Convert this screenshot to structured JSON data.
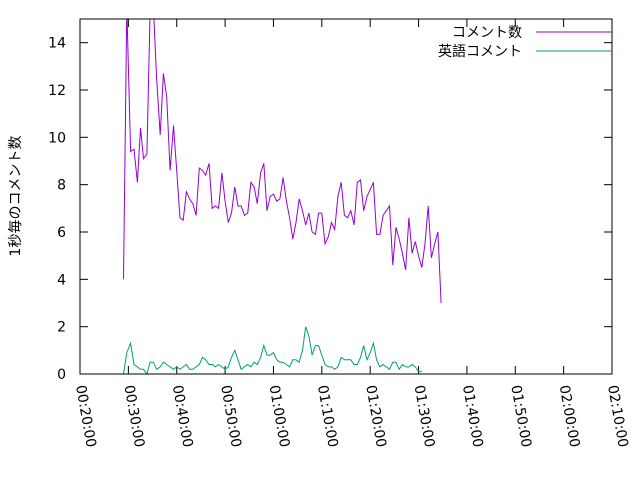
{
  "chart_data": {
    "type": "line",
    "ylabel": "1秒毎のコメント数",
    "xlabel": "",
    "ylim": [
      0,
      15
    ],
    "xlim": [
      1200,
      7800
    ],
    "yticks": [
      0,
      2,
      4,
      6,
      8,
      10,
      12,
      14
    ],
    "xticks": [
      {
        "t": 1200,
        "label": "00:20:00"
      },
      {
        "t": 1800,
        "label": "00:30:00"
      },
      {
        "t": 2400,
        "label": "00:40:00"
      },
      {
        "t": 3000,
        "label": "00:50:00"
      },
      {
        "t": 3600,
        "label": "01:00:00"
      },
      {
        "t": 4200,
        "label": "01:10:00"
      },
      {
        "t": 4800,
        "label": "01:20:00"
      },
      {
        "t": 5400,
        "label": "01:30:00"
      },
      {
        "t": 6000,
        "label": "01:40:00"
      },
      {
        "t": 6600,
        "label": "01:50:00"
      },
      {
        "t": 7200,
        "label": "02:00:00"
      },
      {
        "t": 7800,
        "label": "02:10:00"
      }
    ],
    "legend_position": "top-right",
    "grid": false,
    "series": [
      {
        "name": "コメント数",
        "color": "#9400d3",
        "points": [
          [
            1740,
            4.0
          ],
          [
            1780,
            15.5
          ],
          [
            1828,
            9.4
          ],
          [
            1870,
            9.5
          ],
          [
            1912,
            8.1
          ],
          [
            1950,
            10.4
          ],
          [
            1988,
            9.1
          ],
          [
            2030,
            9.3
          ],
          [
            2070,
            15.3
          ],
          [
            2110,
            15.5
          ],
          [
            2150,
            12.5
          ],
          [
            2195,
            10.1
          ],
          [
            2235,
            12.7
          ],
          [
            2275,
            11.7
          ],
          [
            2318,
            8.6
          ],
          [
            2360,
            10.5
          ],
          [
            2400,
            8.6
          ],
          [
            2440,
            6.6
          ],
          [
            2480,
            6.5
          ],
          [
            2520,
            7.7
          ],
          [
            2560,
            7.4
          ],
          [
            2600,
            7.2
          ],
          [
            2640,
            6.7
          ],
          [
            2680,
            8.7
          ],
          [
            2720,
            8.6
          ],
          [
            2760,
            8.4
          ],
          [
            2800,
            8.9
          ],
          [
            2840,
            7.0
          ],
          [
            2880,
            7.1
          ],
          [
            2920,
            7.0
          ],
          [
            2960,
            8.5
          ],
          [
            3000,
            7.3
          ],
          [
            3040,
            6.4
          ],
          [
            3080,
            6.8
          ],
          [
            3120,
            7.9
          ],
          [
            3160,
            7.1
          ],
          [
            3200,
            7.1
          ],
          [
            3240,
            6.7
          ],
          [
            3280,
            6.8
          ],
          [
            3320,
            8.1
          ],
          [
            3360,
            7.9
          ],
          [
            3400,
            7.2
          ],
          [
            3440,
            8.5
          ],
          [
            3480,
            8.9
          ],
          [
            3520,
            6.9
          ],
          [
            3560,
            7.5
          ],
          [
            3600,
            7.6
          ],
          [
            3640,
            7.3
          ],
          [
            3680,
            7.4
          ],
          [
            3720,
            8.3
          ],
          [
            3760,
            7.3
          ],
          [
            3800,
            6.6
          ],
          [
            3840,
            5.7
          ],
          [
            3880,
            6.4
          ],
          [
            3920,
            7.4
          ],
          [
            3960,
            6.9
          ],
          [
            4000,
            6.3
          ],
          [
            4040,
            6.8
          ],
          [
            4080,
            6.0
          ],
          [
            4120,
            5.9
          ],
          [
            4160,
            6.8
          ],
          [
            4200,
            6.8
          ],
          [
            4240,
            5.5
          ],
          [
            4280,
            5.8
          ],
          [
            4320,
            6.4
          ],
          [
            4360,
            6.1
          ],
          [
            4400,
            7.5
          ],
          [
            4440,
            8.1
          ],
          [
            4480,
            6.7
          ],
          [
            4520,
            6.6
          ],
          [
            4560,
            6.9
          ],
          [
            4600,
            6.3
          ],
          [
            4640,
            8.1
          ],
          [
            4680,
            8.2
          ],
          [
            4720,
            6.9
          ],
          [
            4760,
            7.5
          ],
          [
            4800,
            7.8
          ],
          [
            4840,
            8.1
          ],
          [
            4880,
            5.9
          ],
          [
            4920,
            5.9
          ],
          [
            4960,
            6.7
          ],
          [
            5000,
            6.9
          ],
          [
            5040,
            7.1
          ],
          [
            5080,
            4.6
          ],
          [
            5120,
            6.2
          ],
          [
            5160,
            5.7
          ],
          [
            5200,
            5.1
          ],
          [
            5240,
            4.4
          ],
          [
            5280,
            6.6
          ],
          [
            5320,
            5.1
          ],
          [
            5360,
            5.6
          ],
          [
            5400,
            5.0
          ],
          [
            5440,
            4.5
          ],
          [
            5480,
            5.5
          ],
          [
            5520,
            7.1
          ],
          [
            5560,
            4.9
          ],
          [
            5600,
            5.5
          ],
          [
            5640,
            6.0
          ],
          [
            5680,
            3.0
          ]
        ]
      },
      {
        "name": "英語コメント",
        "color": "#009e73",
        "points": [
          [
            1740,
            0.0
          ],
          [
            1780,
            0.9
          ],
          [
            1828,
            1.3
          ],
          [
            1870,
            0.4
          ],
          [
            1912,
            0.3
          ],
          [
            1950,
            0.2
          ],
          [
            1988,
            0.2
          ],
          [
            2030,
            0.0
          ],
          [
            2070,
            0.5
          ],
          [
            2110,
            0.5
          ],
          [
            2150,
            0.2
          ],
          [
            2195,
            0.3
          ],
          [
            2235,
            0.5
          ],
          [
            2275,
            0.4
          ],
          [
            2318,
            0.3
          ],
          [
            2360,
            0.2
          ],
          [
            2400,
            0.3
          ],
          [
            2440,
            0.2
          ],
          [
            2480,
            0.3
          ],
          [
            2520,
            0.4
          ],
          [
            2560,
            0.2
          ],
          [
            2600,
            0.2
          ],
          [
            2640,
            0.3
          ],
          [
            2680,
            0.4
          ],
          [
            2720,
            0.7
          ],
          [
            2760,
            0.6
          ],
          [
            2800,
            0.4
          ],
          [
            2840,
            0.4
          ],
          [
            2880,
            0.3
          ],
          [
            2920,
            0.4
          ],
          [
            2960,
            0.3
          ],
          [
            3000,
            0.2
          ],
          [
            3040,
            0.3
          ],
          [
            3080,
            0.7
          ],
          [
            3120,
            1.0
          ],
          [
            3160,
            0.6
          ],
          [
            3200,
            0.2
          ],
          [
            3240,
            0.3
          ],
          [
            3280,
            0.4
          ],
          [
            3320,
            0.3
          ],
          [
            3360,
            0.5
          ],
          [
            3400,
            0.4
          ],
          [
            3440,
            0.7
          ],
          [
            3480,
            1.2
          ],
          [
            3520,
            0.8
          ],
          [
            3560,
            0.8
          ],
          [
            3600,
            0.9
          ],
          [
            3640,
            0.6
          ],
          [
            3680,
            0.5
          ],
          [
            3720,
            0.5
          ],
          [
            3760,
            0.4
          ],
          [
            3800,
            0.3
          ],
          [
            3840,
            0.6
          ],
          [
            3880,
            0.6
          ],
          [
            3920,
            0.5
          ],
          [
            3960,
            1.0
          ],
          [
            4000,
            2.0
          ],
          [
            4040,
            1.6
          ],
          [
            4080,
            0.8
          ],
          [
            4120,
            1.2
          ],
          [
            4160,
            1.2
          ],
          [
            4200,
            0.8
          ],
          [
            4240,
            0.4
          ],
          [
            4280,
            0.3
          ],
          [
            4320,
            0.3
          ],
          [
            4360,
            0.2
          ],
          [
            4400,
            0.3
          ],
          [
            4440,
            0.7
          ],
          [
            4480,
            0.6
          ],
          [
            4520,
            0.6
          ],
          [
            4560,
            0.6
          ],
          [
            4600,
            0.4
          ],
          [
            4640,
            0.4
          ],
          [
            4680,
            0.7
          ],
          [
            4720,
            1.2
          ],
          [
            4760,
            0.6
          ],
          [
            4800,
            0.9
          ],
          [
            4840,
            1.3
          ],
          [
            4880,
            0.6
          ],
          [
            4920,
            0.3
          ],
          [
            4960,
            0.4
          ],
          [
            5000,
            0.3
          ],
          [
            5040,
            0.2
          ],
          [
            5080,
            0.5
          ],
          [
            5120,
            0.5
          ],
          [
            5160,
            0.2
          ],
          [
            5200,
            0.4
          ],
          [
            5240,
            0.3
          ],
          [
            5280,
            0.3
          ],
          [
            5320,
            0.4
          ],
          [
            5360,
            0.3
          ],
          [
            5400,
            0.1
          ],
          [
            5440,
            0.1
          ]
        ]
      }
    ]
  }
}
